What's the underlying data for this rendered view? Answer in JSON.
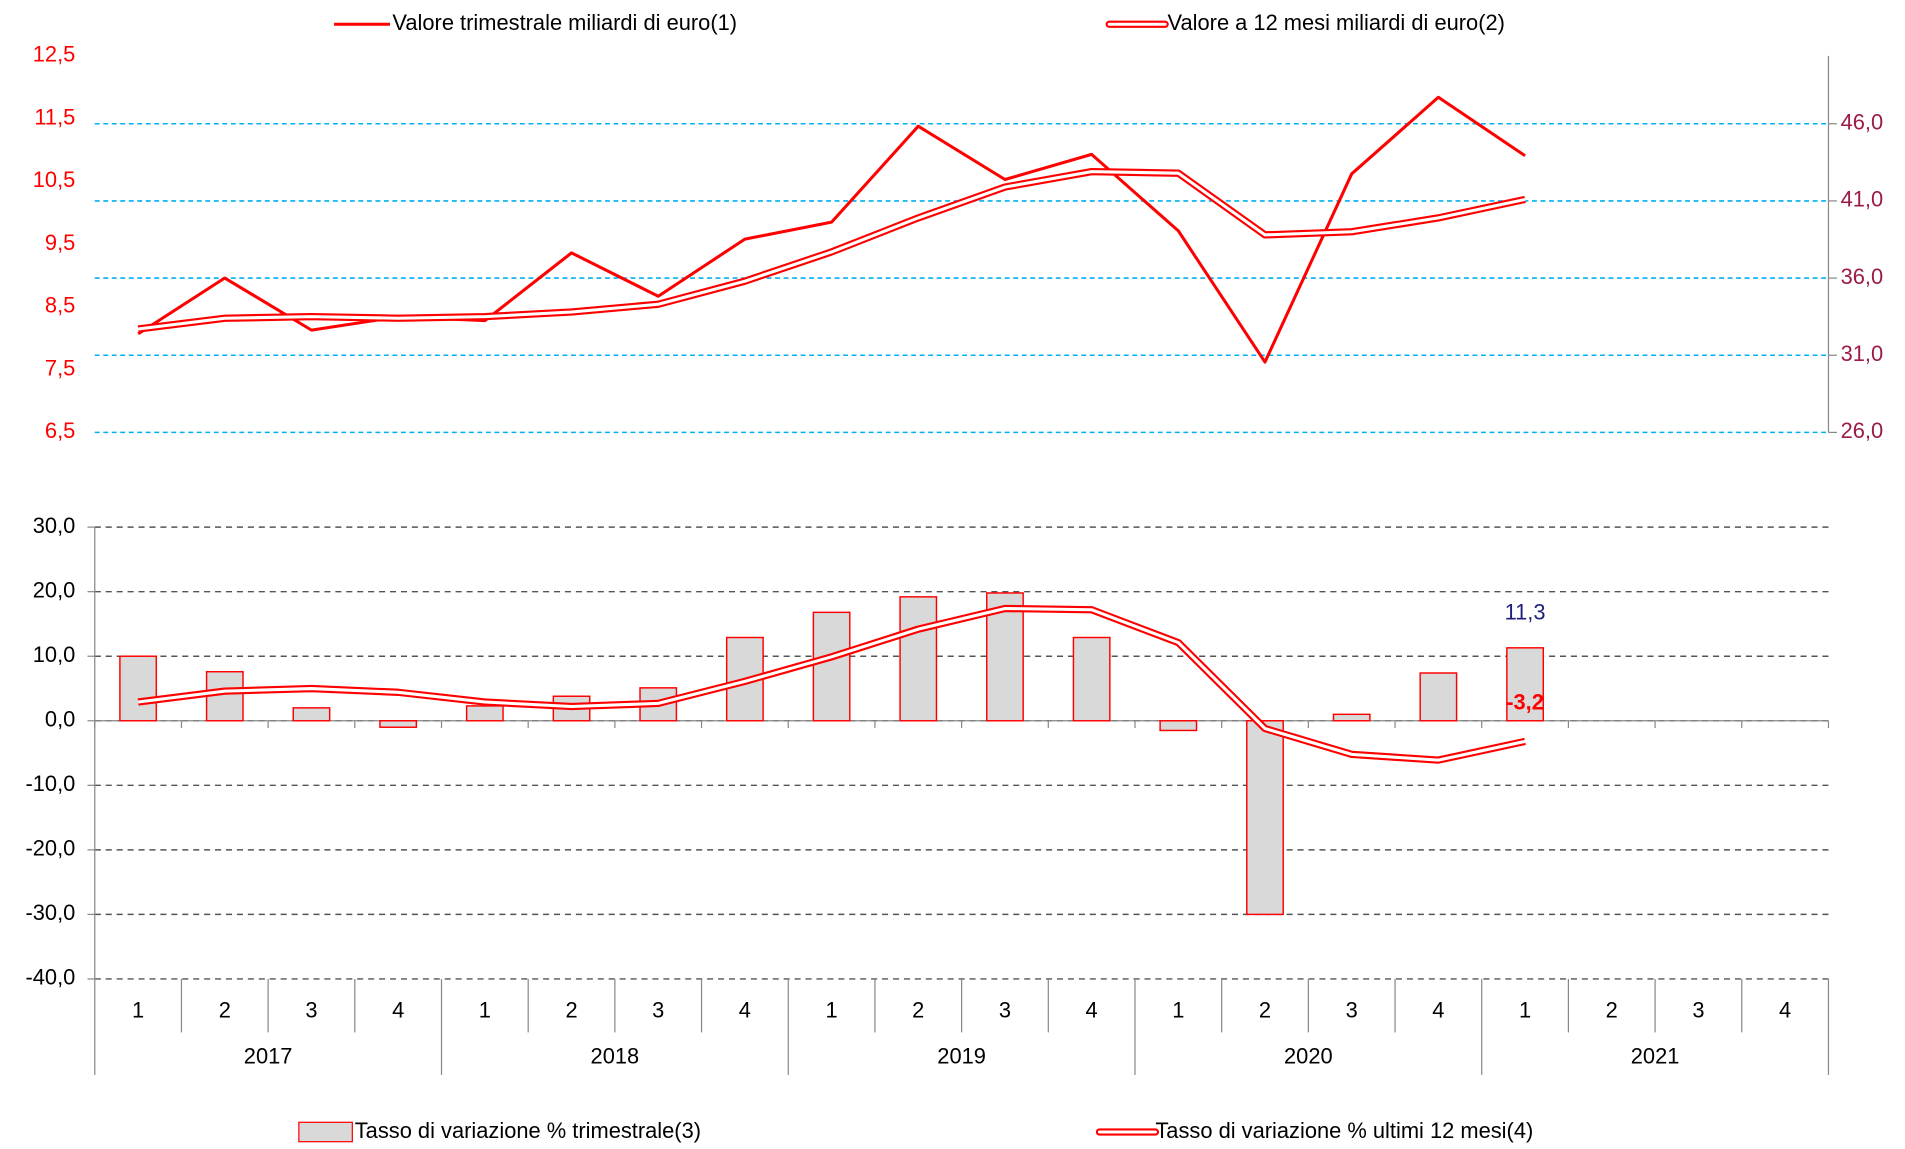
{
  "chart_data": [
    {
      "type": "line",
      "ylim": [
        6.5,
        12.5
      ],
      "yticks": [
        {
          "value": 6.5,
          "label": "6,5"
        },
        {
          "value": 7.5,
          "label": "7,5"
        },
        {
          "value": 8.5,
          "label": "8,5"
        },
        {
          "value": 9.5,
          "label": "9,5"
        },
        {
          "value": 10.5,
          "label": "10,5"
        },
        {
          "value": 11.5,
          "label": "11,5"
        },
        {
          "value": 12.5,
          "label": "12,5"
        }
      ],
      "y2lim": [
        26,
        50.4
      ],
      "y2ticks": [
        {
          "value": 26,
          "label": "26,0"
        },
        {
          "value": 31,
          "label": "31,0"
        },
        {
          "value": 36,
          "label": "36,0"
        },
        {
          "value": 41,
          "label": "41,0"
        },
        {
          "value": 46,
          "label": "46,0"
        }
      ],
      "grid": true,
      "grid_color": "#00b0f0",
      "series": [
        {
          "name": "Valore trimestrale miliardi di euro(1)",
          "color": "#ff0000",
          "style": "single",
          "values": [
            8.07,
            8.96,
            8.13,
            8.34,
            8.28,
            9.36,
            8.67,
            9.58,
            9.85,
            11.38,
            10.53,
            10.93,
            9.71,
            7.62,
            10.62,
            11.84,
            10.91
          ]
        },
        {
          "name": "Valore a 12 mesi miliardi di euro(2)",
          "color": "#ff0000",
          "style": "double",
          "axis": "y2",
          "values": [
            32.7,
            33.4,
            33.5,
            33.4,
            33.5,
            33.8,
            34.3,
            35.8,
            37.7,
            39.9,
            41.9,
            42.9,
            42.8,
            38.8,
            39.0,
            39.9,
            41.1
          ]
        }
      ]
    },
    {
      "type": "bar",
      "categories": [
        "1",
        "2",
        "3",
        "4",
        "1",
        "2",
        "3",
        "4",
        "1",
        "2",
        "3",
        "4",
        "1",
        "2",
        "3",
        "4",
        "1",
        "2",
        "3",
        "4"
      ],
      "years": [
        "2017",
        "2018",
        "2019",
        "2020",
        "2021"
      ],
      "ylim": [
        -40,
        30
      ],
      "yticks": [
        {
          "value": -40,
          "label": "-40,0"
        },
        {
          "value": -30,
          "label": "-30,0"
        },
        {
          "value": -20,
          "label": "-20,0"
        },
        {
          "value": -10,
          "label": "-10,0"
        },
        {
          "value": 0,
          "label": "0,0"
        },
        {
          "value": 10,
          "label": "10,0"
        },
        {
          "value": 20,
          "label": "20,0"
        },
        {
          "value": 30,
          "label": "30,0"
        }
      ],
      "grid": true,
      "grid_color": "#555555",
      "series": [
        {
          "name": "Tasso di variazione % trimestrale(3)",
          "type": "bar",
          "color": "#d9d9d9",
          "edge_color": "#ff0000",
          "label_color": "#1f1f7a",
          "values": [
            10.0,
            7.6,
            2.0,
            -1.0,
            2.3,
            3.8,
            5.1,
            12.9,
            16.8,
            19.2,
            19.8,
            12.9,
            -1.5,
            -30.0,
            1.0,
            7.4,
            11.3,
            null,
            null,
            null
          ],
          "value_labels": [
            null,
            null,
            null,
            null,
            null,
            null,
            null,
            null,
            null,
            null,
            null,
            null,
            null,
            null,
            null,
            null,
            "11,3",
            null,
            null,
            null
          ]
        },
        {
          "name": "Tasso di variazione % ultimi 12 mesi(4)",
          "type": "line",
          "style": "double",
          "color": "#ff0000",
          "label_color": "#ff0000",
          "values": [
            2.9,
            4.6,
            5.0,
            4.4,
            2.9,
            2.2,
            2.7,
            6.1,
            9.9,
            14.2,
            17.4,
            17.2,
            12.1,
            -1.2,
            -5.2,
            -6.1,
            -3.2,
            null,
            null,
            null
          ],
          "value_labels": [
            null,
            null,
            null,
            null,
            null,
            null,
            null,
            null,
            null,
            null,
            null,
            null,
            null,
            null,
            null,
            null,
            "-3,2",
            null,
            null,
            null
          ]
        }
      ]
    }
  ]
}
